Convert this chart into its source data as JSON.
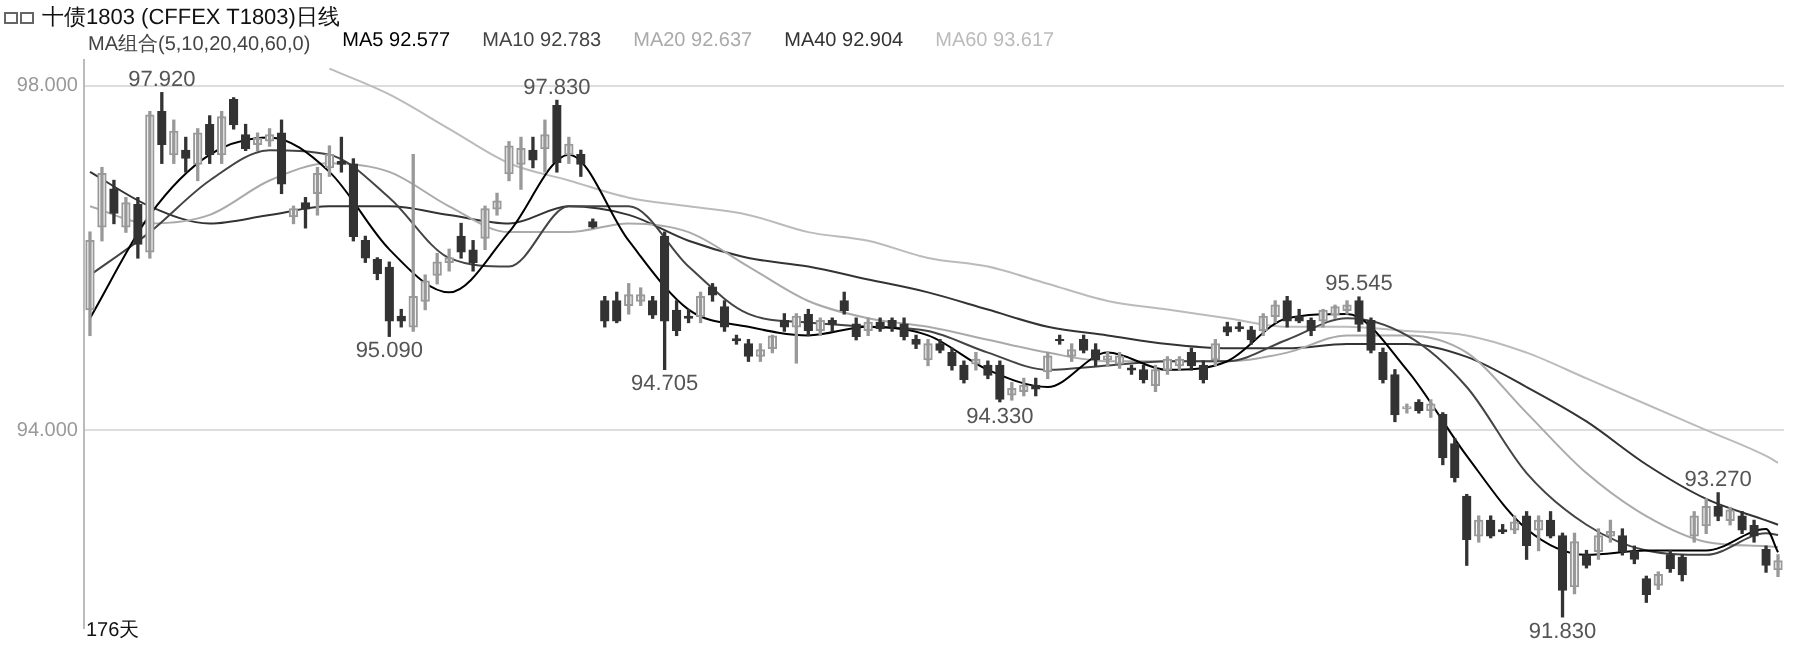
{
  "chart_data": {
    "type": "candlestick",
    "title": "十债1803 (CFFEX T1803)日线",
    "legend_title": "MA组合(5,10,20,40,60,0)",
    "legend": "top left",
    "grid": "y",
    "categories": [
      null,
      null,
      null,
      null,
      null,
      null,
      null,
      null,
      null,
      null,
      null,
      null,
      null,
      null,
      null,
      null,
      null,
      null,
      null,
      null,
      null,
      null,
      null,
      null,
      null,
      null,
      null,
      null,
      null,
      null,
      null,
      null,
      null,
      null,
      null,
      null,
      null,
      null,
      null,
      null,
      null,
      null,
      null,
      null,
      null,
      null,
      null,
      null,
      null,
      null,
      null,
      null,
      null,
      null,
      null,
      null,
      null,
      null,
      null,
      null,
      null,
      null,
      null,
      null,
      null,
      null,
      null,
      null,
      null,
      null,
      null,
      null,
      null,
      null,
      null,
      null,
      null,
      null,
      null,
      null,
      null,
      null,
      null,
      null,
      null,
      null,
      null,
      null,
      null,
      null,
      null,
      null,
      null,
      null,
      null,
      null,
      null,
      null,
      null,
      null,
      null,
      null,
      null,
      null,
      null,
      null,
      null,
      null,
      null,
      null,
      null,
      null,
      null,
      null,
      null,
      null,
      null,
      null,
      null,
      null,
      null,
      null,
      null,
      null,
      null,
      null,
      null,
      null,
      null,
      null,
      null,
      null,
      null,
      null,
      null,
      null,
      null,
      null,
      null,
      null,
      null,
      null
    ],
    "ylim": [
      91.7,
      98.3
    ],
    "yticks": [
      {
        "value": 94,
        "label": "94.000"
      },
      {
        "value": 98,
        "label": "98.000"
      }
    ],
    "ohlc": [
      [
        95.4,
        96.3,
        95.1,
        96.2
      ],
      [
        96.36,
        97.05,
        96.2,
        96.98
      ],
      [
        96.8,
        96.9,
        96.4,
        96.52
      ],
      [
        96.36,
        96.7,
        96.3,
        96.64
      ],
      [
        96.62,
        96.7,
        96.0,
        96.16
      ],
      [
        96.07,
        97.7,
        96.0,
        97.66
      ],
      [
        97.7,
        97.92,
        97.1,
        97.32
      ],
      [
        97.2,
        97.6,
        97.1,
        97.47
      ],
      [
        97.25,
        97.4,
        97.0,
        97.16
      ],
      [
        97.09,
        97.5,
        96.9,
        97.45
      ],
      [
        97.55,
        97.65,
        97.1,
        97.2
      ],
      [
        97.2,
        97.7,
        97.1,
        97.64
      ],
      [
        97.84,
        97.86,
        97.5,
        97.55
      ],
      [
        97.43,
        97.55,
        97.25,
        97.27
      ],
      [
        97.32,
        97.45,
        97.25,
        97.39
      ],
      [
        97.36,
        97.5,
        97.3,
        97.43
      ],
      [
        97.45,
        97.6,
        96.75,
        96.86
      ],
      [
        96.48,
        96.6,
        96.4,
        96.57
      ],
      [
        96.64,
        96.7,
        96.35,
        96.57
      ],
      [
        96.75,
        97.05,
        96.5,
        96.98
      ],
      [
        97.05,
        97.3,
        96.95,
        97.2
      ],
      [
        97.12,
        97.4,
        97.0,
        97.09
      ],
      [
        97.09,
        97.15,
        96.2,
        96.25
      ],
      [
        96.2,
        96.25,
        95.95,
        96.0
      ],
      [
        95.98,
        96.0,
        95.75,
        95.82
      ],
      [
        95.89,
        95.95,
        95.09,
        95.27
      ],
      [
        95.32,
        95.4,
        95.2,
        95.27
      ],
      [
        95.2,
        97.2,
        95.15,
        95.55
      ],
      [
        95.5,
        95.8,
        95.4,
        95.73
      ],
      [
        95.8,
        96.05,
        95.7,
        95.95
      ],
      [
        95.95,
        96.1,
        95.85,
        96.0
      ],
      [
        96.25,
        96.4,
        96.0,
        96.07
      ],
      [
        96.09,
        96.2,
        95.85,
        95.95
      ],
      [
        96.23,
        96.6,
        96.1,
        96.57
      ],
      [
        96.57,
        96.75,
        96.5,
        96.66
      ],
      [
        96.98,
        97.35,
        96.9,
        97.3
      ],
      [
        97.09,
        97.4,
        96.8,
        97.27
      ],
      [
        97.25,
        97.4,
        97.05,
        97.14
      ],
      [
        97.27,
        97.6,
        97.0,
        97.43
      ],
      [
        97.77,
        97.83,
        97.0,
        97.11
      ],
      [
        97.2,
        97.4,
        97.1,
        97.32
      ],
      [
        97.2,
        97.25,
        96.95,
        97.09
      ],
      [
        96.42,
        96.45,
        96.35,
        96.36
      ],
      [
        95.5,
        95.55,
        95.2,
        95.27
      ],
      [
        95.5,
        95.6,
        95.25,
        95.27
      ],
      [
        95.45,
        95.7,
        95.35,
        95.57
      ],
      [
        95.5,
        95.65,
        95.45,
        95.57
      ],
      [
        95.5,
        95.55,
        95.3,
        95.34
      ],
      [
        96.25,
        96.3,
        94.705,
        95.27
      ],
      [
        95.39,
        95.5,
        95.1,
        95.16
      ],
      [
        95.32,
        95.4,
        95.25,
        95.3
      ],
      [
        95.32,
        95.6,
        95.25,
        95.55
      ],
      [
        95.66,
        95.7,
        95.5,
        95.57
      ],
      [
        95.43,
        95.5,
        95.15,
        95.2
      ],
      [
        95.06,
        95.1,
        95.0,
        95.04
      ],
      [
        95.0,
        95.05,
        94.8,
        94.86
      ],
      [
        94.86,
        95.0,
        94.8,
        94.93
      ],
      [
        94.95,
        95.1,
        94.9,
        95.09
      ],
      [
        95.27,
        95.35,
        95.15,
        95.2
      ],
      [
        95.2,
        95.35,
        94.78,
        95.32
      ],
      [
        95.34,
        95.4,
        95.1,
        95.16
      ],
      [
        95.16,
        95.3,
        95.1,
        95.27
      ],
      [
        95.27,
        95.3,
        95.15,
        95.23
      ],
      [
        95.5,
        95.6,
        95.35,
        95.39
      ],
      [
        95.23,
        95.3,
        95.05,
        95.09
      ],
      [
        95.16,
        95.3,
        95.1,
        95.25
      ],
      [
        95.25,
        95.3,
        95.15,
        95.18
      ],
      [
        95.27,
        95.3,
        95.15,
        95.2
      ],
      [
        95.23,
        95.3,
        95.05,
        95.09
      ],
      [
        95.05,
        95.1,
        94.95,
        95.0
      ],
      [
        94.82,
        95.05,
        94.75,
        95.0
      ],
      [
        95.0,
        95.05,
        94.9,
        94.93
      ],
      [
        94.9,
        94.95,
        94.7,
        94.75
      ],
      [
        94.75,
        94.8,
        94.55,
        94.59
      ],
      [
        94.77,
        94.9,
        94.7,
        94.82
      ],
      [
        94.75,
        94.8,
        94.6,
        94.64
      ],
      [
        94.75,
        94.8,
        94.33,
        94.36
      ],
      [
        94.41,
        94.55,
        94.35,
        94.48
      ],
      [
        94.45,
        94.6,
        94.4,
        94.52
      ],
      [
        94.52,
        94.6,
        94.4,
        94.48
      ],
      [
        94.68,
        94.9,
        94.6,
        94.86
      ],
      [
        95.05,
        95.1,
        95.0,
        95.04
      ],
      [
        94.86,
        95.0,
        94.8,
        94.93
      ],
      [
        95.05,
        95.1,
        94.9,
        94.93
      ],
      [
        94.93,
        95.0,
        94.75,
        94.82
      ],
      [
        94.82,
        94.9,
        94.75,
        94.86
      ],
      [
        94.77,
        94.9,
        94.72,
        94.86
      ],
      [
        94.72,
        94.75,
        94.65,
        94.7
      ],
      [
        94.7,
        94.75,
        94.55,
        94.59
      ],
      [
        94.52,
        94.75,
        94.45,
        94.7
      ],
      [
        94.7,
        94.85,
        94.65,
        94.82
      ],
      [
        94.75,
        94.85,
        94.7,
        94.82
      ],
      [
        94.9,
        94.95,
        94.7,
        94.75
      ],
      [
        94.75,
        94.8,
        94.55,
        94.59
      ],
      [
        94.82,
        95.05,
        94.75,
        95.0
      ],
      [
        95.2,
        95.25,
        95.1,
        95.14
      ],
      [
        95.2,
        95.25,
        95.15,
        95.18
      ],
      [
        95.16,
        95.2,
        95.0,
        95.05
      ],
      [
        95.16,
        95.35,
        95.1,
        95.32
      ],
      [
        95.32,
        95.5,
        95.25,
        95.45
      ],
      [
        95.5,
        95.55,
        95.2,
        95.27
      ],
      [
        95.32,
        95.4,
        95.25,
        95.27
      ],
      [
        95.27,
        95.3,
        95.1,
        95.16
      ],
      [
        95.27,
        95.4,
        95.2,
        95.39
      ],
      [
        95.34,
        95.45,
        95.3,
        95.43
      ],
      [
        95.39,
        95.5,
        95.35,
        95.45
      ],
      [
        95.5,
        95.545,
        95.15,
        95.23
      ],
      [
        95.27,
        95.3,
        94.9,
        94.93
      ],
      [
        94.9,
        94.95,
        94.55,
        94.59
      ],
      [
        94.64,
        94.7,
        94.1,
        94.18
      ],
      [
        94.25,
        94.3,
        94.2,
        94.27
      ],
      [
        94.32,
        94.35,
        94.2,
        94.23
      ],
      [
        94.23,
        94.35,
        94.15,
        94.3
      ],
      [
        94.18,
        94.2,
        93.6,
        93.68
      ],
      [
        93.84,
        93.9,
        93.4,
        93.45
      ],
      [
        93.23,
        93.25,
        92.43,
        92.73
      ],
      [
        92.77,
        93.0,
        92.7,
        92.95
      ],
      [
        92.95,
        93.0,
        92.75,
        92.77
      ],
      [
        92.84,
        92.9,
        92.8,
        92.82
      ],
      [
        92.84,
        93.0,
        92.8,
        92.93
      ],
      [
        93.0,
        93.05,
        92.5,
        92.66
      ],
      [
        92.84,
        93.0,
        92.6,
        92.95
      ],
      [
        92.95,
        93.05,
        92.75,
        92.77
      ],
      [
        92.77,
        92.8,
        91.83,
        92.14
      ],
      [
        92.18,
        92.8,
        92.1,
        92.7
      ],
      [
        92.55,
        92.6,
        92.4,
        92.43
      ],
      [
        92.59,
        92.85,
        92.5,
        92.77
      ],
      [
        92.77,
        92.95,
        92.7,
        92.82
      ],
      [
        92.77,
        92.85,
        92.55,
        92.59
      ],
      [
        92.59,
        92.65,
        92.45,
        92.5
      ],
      [
        92.27,
        92.3,
        92.0,
        92.09
      ],
      [
        92.2,
        92.35,
        92.15,
        92.32
      ],
      [
        92.55,
        92.6,
        92.35,
        92.39
      ],
      [
        92.52,
        92.55,
        92.25,
        92.32
      ],
      [
        92.77,
        93.05,
        92.7,
        93.0
      ],
      [
        92.89,
        93.2,
        92.8,
        93.11
      ],
      [
        93.11,
        93.27,
        92.95,
        93.0
      ],
      [
        92.95,
        93.1,
        92.9,
        93.07
      ],
      [
        93.0,
        93.05,
        92.8,
        92.84
      ],
      [
        92.89,
        92.95,
        92.7,
        92.77
      ],
      [
        92.61,
        92.65,
        92.35,
        92.43
      ],
      [
        92.38,
        92.55,
        92.3,
        92.48
      ]
    ],
    "series": [
      {
        "name": "MA5 92.577",
        "type": "line",
        "color": "#000000",
        "values": [
          95.3,
          null,
          null,
          null,
          null,
          96.5,
          null,
          null,
          null,
          null,
          97.2,
          null,
          null,
          null,
          null,
          97.4,
          null,
          null,
          null,
          null,
          97.0,
          null,
          null,
          null,
          null,
          96.1,
          null,
          null,
          null,
          null,
          95.6,
          null,
          null,
          null,
          null,
          96.3,
          null,
          null,
          null,
          null,
          97.2,
          null,
          null,
          null,
          null,
          96.2,
          null,
          null,
          null,
          null,
          95.4,
          null,
          null,
          null,
          null,
          95.2,
          null,
          null,
          null,
          null,
          95.1,
          null,
          null,
          null,
          null,
          95.2,
          null,
          null,
          null,
          null,
          95.1,
          null,
          null,
          null,
          null,
          94.7,
          null,
          null,
          null,
          null,
          94.5,
          null,
          null,
          null,
          null,
          94.9,
          null,
          null,
          null,
          null,
          94.7,
          null,
          null,
          null,
          null,
          94.8,
          null,
          null,
          null,
          null,
          95.3,
          null,
          null,
          null,
          null,
          95.35,
          null,
          null,
          null,
          null,
          94.7,
          null,
          null,
          null,
          null,
          93.7,
          null,
          null,
          null,
          null,
          92.85,
          null,
          null,
          null,
          null,
          92.55,
          null,
          null,
          null,
          null,
          92.6,
          null,
          null,
          null,
          null,
          92.6,
          null,
          null,
          null,
          null,
          92.85,
          92.58
        ]
      },
      {
        "name": "MA10 92.783",
        "type": "line",
        "color": "#444444",
        "values": [
          95.8,
          null,
          null,
          null,
          null,
          96.3,
          null,
          null,
          null,
          null,
          96.9,
          null,
          null,
          null,
          null,
          97.25,
          null,
          null,
          null,
          null,
          97.2,
          null,
          null,
          null,
          null,
          96.7,
          null,
          null,
          null,
          null,
          96.0,
          null,
          null,
          null,
          null,
          95.9,
          null,
          null,
          null,
          null,
          96.6,
          null,
          null,
          null,
          null,
          96.6,
          null,
          null,
          null,
          null,
          95.9,
          null,
          null,
          null,
          null,
          95.35,
          null,
          null,
          null,
          null,
          95.25,
          null,
          null,
          null,
          null,
          95.2,
          null,
          null,
          null,
          null,
          95.15,
          null,
          null,
          null,
          null,
          94.9,
          null,
          null,
          null,
          null,
          94.7,
          null,
          null,
          null,
          null,
          94.75,
          null,
          null,
          null,
          null,
          94.8,
          null,
          null,
          null,
          null,
          94.8,
          null,
          null,
          null,
          null,
          95.05,
          null,
          null,
          null,
          null,
          95.3,
          null,
          null,
          null,
          null,
          95.1,
          null,
          null,
          null,
          null,
          94.5,
          null,
          null,
          null,
          null,
          93.5,
          null,
          null,
          null,
          null,
          92.9,
          null,
          null,
          null,
          null,
          92.6,
          null,
          null,
          null,
          null,
          92.55,
          null,
          null,
          null,
          null,
          92.8,
          92.78
        ]
      },
      {
        "name": "MA20 92.637",
        "type": "line",
        "color": "#aaaaaa",
        "values": [
          96.6,
          null,
          null,
          null,
          null,
          96.4,
          null,
          null,
          null,
          null,
          96.5,
          null,
          null,
          null,
          null,
          96.9,
          null,
          null,
          null,
          null,
          97.1,
          null,
          null,
          null,
          null,
          97.0,
          null,
          null,
          null,
          null,
          96.6,
          null,
          null,
          null,
          null,
          96.3,
          null,
          null,
          null,
          null,
          96.3,
          null,
          null,
          null,
          null,
          96.4,
          null,
          null,
          null,
          null,
          96.3,
          null,
          null,
          null,
          null,
          95.9,
          null,
          null,
          null,
          null,
          95.5,
          null,
          null,
          null,
          null,
          95.3,
          null,
          null,
          null,
          null,
          95.2,
          null,
          null,
          null,
          null,
          95.05,
          null,
          null,
          null,
          null,
          94.9,
          null,
          null,
          null,
          null,
          94.8,
          null,
          null,
          null,
          null,
          94.8,
          null,
          null,
          null,
          null,
          94.8,
          null,
          null,
          null,
          null,
          94.9,
          null,
          null,
          null,
          null,
          95.1,
          null,
          null,
          null,
          null,
          95.1,
          null,
          null,
          null,
          null,
          94.9,
          null,
          null,
          null,
          null,
          94.2,
          null,
          null,
          null,
          null,
          93.5,
          null,
          null,
          null,
          null,
          93.0,
          null,
          null,
          null,
          null,
          92.7,
          null,
          null,
          null,
          null,
          92.65,
          92.64
        ]
      },
      {
        "name": "MA40 92.904",
        "type": "line",
        "color": "#333333",
        "values": [
          97.0,
          null,
          null,
          null,
          null,
          96.6,
          null,
          null,
          null,
          null,
          96.4,
          null,
          null,
          null,
          null,
          96.5,
          null,
          null,
          null,
          null,
          96.6,
          null,
          null,
          null,
          null,
          96.6,
          null,
          null,
          null,
          null,
          96.5,
          null,
          null,
          null,
          null,
          96.4,
          null,
          null,
          null,
          null,
          96.6,
          null,
          null,
          null,
          null,
          96.5,
          null,
          null,
          null,
          null,
          96.2,
          null,
          null,
          null,
          null,
          96.0,
          null,
          null,
          null,
          null,
          95.9,
          null,
          null,
          null,
          null,
          95.75,
          null,
          null,
          null,
          null,
          95.6,
          null,
          null,
          null,
          null,
          95.4,
          null,
          null,
          null,
          null,
          95.2,
          null,
          null,
          null,
          null,
          95.1,
          null,
          null,
          null,
          null,
          95.0,
          null,
          null,
          null,
          null,
          94.95,
          null,
          null,
          null,
          null,
          94.95,
          null,
          null,
          null,
          null,
          95.0,
          null,
          null,
          null,
          null,
          95.0,
          null,
          null,
          null,
          null,
          94.85,
          null,
          null,
          null,
          null,
          94.5,
          null,
          null,
          null,
          null,
          94.1,
          null,
          null,
          null,
          null,
          93.6,
          null,
          null,
          null,
          null,
          93.2,
          null,
          null,
          null,
          null,
          92.95,
          92.9
        ]
      },
      {
        "name": "MA60 93.617",
        "type": "line",
        "color": "#bbbbbb",
        "values": [
          null,
          null,
          null,
          null,
          null,
          null,
          null,
          null,
          null,
          null,
          null,
          null,
          null,
          null,
          null,
          null,
          null,
          null,
          null,
          null,
          98.2,
          null,
          null,
          null,
          null,
          97.9,
          null,
          null,
          null,
          null,
          97.5,
          null,
          null,
          null,
          null,
          97.1,
          null,
          null,
          null,
          null,
          96.9,
          null,
          null,
          null,
          null,
          96.7,
          null,
          null,
          null,
          null,
          96.6,
          null,
          null,
          null,
          null,
          96.5,
          null,
          null,
          null,
          null,
          96.3,
          null,
          null,
          null,
          null,
          96.2,
          null,
          null,
          null,
          null,
          96.0,
          null,
          null,
          null,
          null,
          95.9,
          null,
          null,
          null,
          null,
          95.7,
          null,
          null,
          null,
          null,
          95.5,
          null,
          null,
          null,
          null,
          95.4,
          null,
          null,
          null,
          null,
          95.3,
          null,
          null,
          null,
          null,
          95.2,
          null,
          null,
          null,
          null,
          95.2,
          null,
          null,
          null,
          null,
          95.15,
          null,
          null,
          null,
          null,
          95.1,
          null,
          null,
          null,
          null,
          94.9,
          null,
          null,
          null,
          null,
          94.6,
          null,
          null,
          null,
          null,
          94.3,
          null,
          null,
          null,
          null,
          94.0,
          null,
          null,
          null,
          null,
          93.7,
          93.62
        ]
      }
    ],
    "annotations": [
      {
        "text": "97.920",
        "y": 97.92
      },
      {
        "text": "95.090",
        "y": 95.09
      },
      {
        "text": "97.830",
        "y": 97.83
      },
      {
        "text": "94.705",
        "y": 94.705
      },
      {
        "text": "94.330",
        "y": 94.33
      },
      {
        "text": "95.545",
        "y": 95.545
      },
      {
        "text": "91.830",
        "y": 91.83
      },
      {
        "text": "93.270",
        "y": 93.27
      },
      "176天"
    ]
  }
}
